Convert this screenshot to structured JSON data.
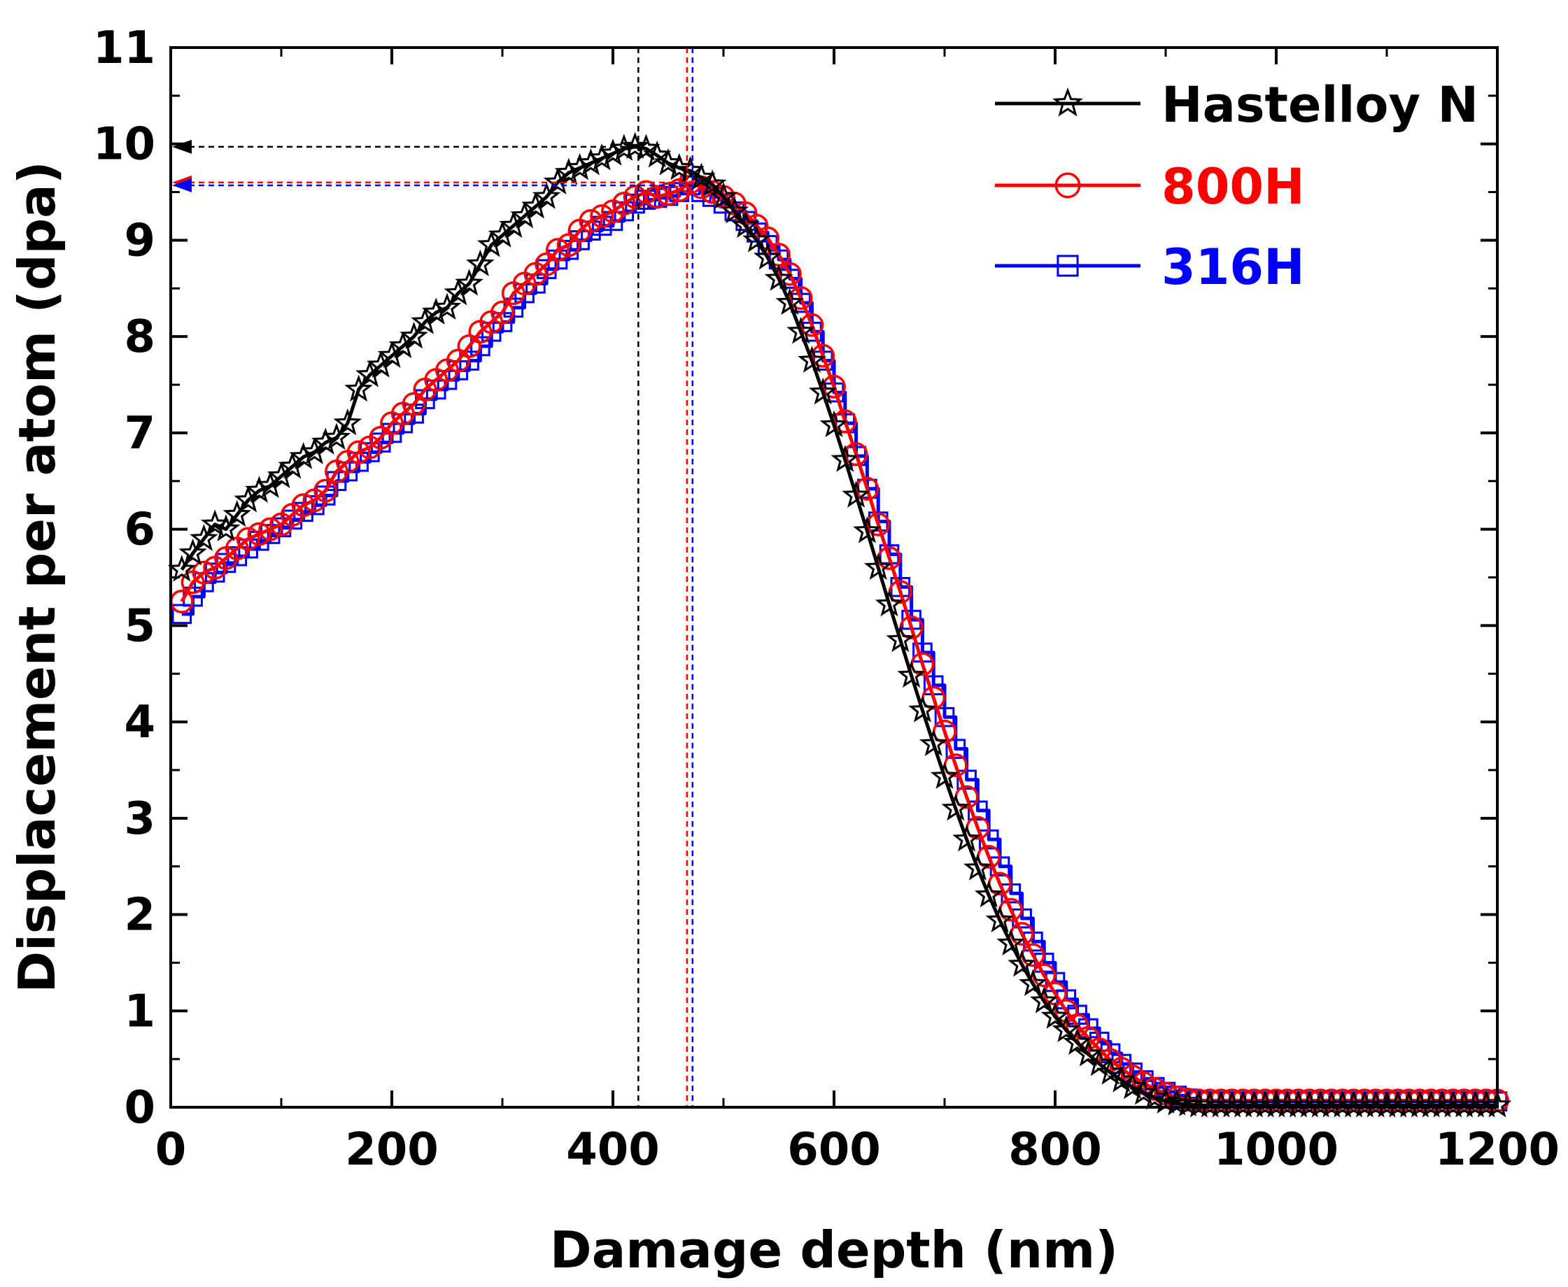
{
  "chart_data": {
    "type": "line",
    "xlabel": "Damage depth (nm)",
    "ylabel": "Displacement per atom (dpa)",
    "xlim": [
      0,
      1200
    ],
    "ylim": [
      0,
      11
    ],
    "xticks": [
      0,
      200,
      400,
      600,
      800,
      1000,
      1200
    ],
    "yticks": [
      0,
      1,
      2,
      3,
      4,
      5,
      6,
      7,
      8,
      9,
      10,
      11
    ],
    "grid": false,
    "legend_position": "top-right",
    "series": [
      {
        "name": "Hastelloy N",
        "color": "#000000",
        "marker": "star",
        "peak_x": 423,
        "peak_y": 9.97,
        "x": [
          10,
          20,
          30,
          40,
          50,
          60,
          70,
          80,
          90,
          100,
          110,
          120,
          130,
          140,
          150,
          160,
          170,
          180,
          190,
          200,
          210,
          220,
          230,
          240,
          250,
          260,
          270,
          280,
          290,
          300,
          310,
          320,
          330,
          340,
          350,
          360,
          370,
          380,
          390,
          400,
          410,
          420,
          430,
          440,
          450,
          460,
          470,
          480,
          490,
          500,
          510,
          520,
          530,
          540,
          550,
          560,
          570,
          580,
          590,
          600,
          610,
          620,
          630,
          640,
          650,
          660,
          670,
          680,
          690,
          700,
          710,
          720,
          730,
          740,
          750,
          760,
          770,
          780,
          790,
          800,
          810,
          820,
          830,
          840,
          850,
          860,
          870,
          880,
          890,
          900,
          910,
          920,
          930,
          940,
          950,
          960,
          970,
          980,
          990,
          1000,
          1010,
          1020,
          1030,
          1040,
          1050,
          1060,
          1070,
          1080,
          1090,
          1100,
          1110,
          1120,
          1130,
          1140,
          1150,
          1160,
          1170,
          1180,
          1190,
          1200
        ],
        "y": [
          5.58,
          5.75,
          5.9,
          6.05,
          6.0,
          6.15,
          6.3,
          6.4,
          6.45,
          6.55,
          6.65,
          6.75,
          6.8,
          6.9,
          6.95,
          7.1,
          7.45,
          7.6,
          7.7,
          7.8,
          7.9,
          8.0,
          8.15,
          8.25,
          8.3,
          8.45,
          8.55,
          8.75,
          8.95,
          9.05,
          9.15,
          9.25,
          9.35,
          9.45,
          9.6,
          9.7,
          9.75,
          9.8,
          9.85,
          9.9,
          9.95,
          9.97,
          9.95,
          9.88,
          9.8,
          9.75,
          9.72,
          9.65,
          9.58,
          9.45,
          9.3,
          9.15,
          9.0,
          8.82,
          8.6,
          8.35,
          8.05,
          7.75,
          7.42,
          7.08,
          6.72,
          6.35,
          5.98,
          5.6,
          5.22,
          4.85,
          4.48,
          4.12,
          3.77,
          3.43,
          3.1,
          2.78,
          2.48,
          2.2,
          1.94,
          1.7,
          1.48,
          1.28,
          1.1,
          0.94,
          0.8,
          0.67,
          0.55,
          0.45,
          0.36,
          0.28,
          0.21,
          0.15,
          0.1,
          0.06,
          0.04,
          0.03,
          0.02,
          0.02,
          0.02,
          0.02,
          0.02,
          0.02,
          0.02,
          0.02,
          0.02,
          0.02,
          0.02,
          0.02,
          0.02,
          0.02,
          0.02,
          0.02,
          0.02,
          0.02,
          0.02,
          0.02,
          0.02,
          0.02,
          0.02,
          0.02,
          0.02,
          0.02,
          0.02,
          0.02
        ]
      },
      {
        "name": "800H",
        "color": "#ff0000",
        "marker": "circle",
        "peak_x": 467,
        "peak_y": 9.6,
        "x": [
          10,
          20,
          30,
          40,
          50,
          60,
          70,
          80,
          90,
          100,
          110,
          120,
          130,
          140,
          150,
          160,
          170,
          180,
          190,
          200,
          210,
          220,
          230,
          240,
          250,
          260,
          270,
          280,
          290,
          300,
          310,
          320,
          330,
          340,
          350,
          360,
          370,
          380,
          390,
          400,
          410,
          420,
          430,
          440,
          450,
          460,
          470,
          480,
          490,
          500,
          510,
          520,
          530,
          540,
          550,
          560,
          570,
          580,
          590,
          600,
          610,
          620,
          630,
          640,
          650,
          660,
          670,
          680,
          690,
          700,
          710,
          720,
          730,
          740,
          750,
          760,
          770,
          780,
          790,
          800,
          810,
          820,
          830,
          840,
          850,
          860,
          870,
          880,
          890,
          900,
          910,
          920,
          930,
          940,
          950,
          960,
          970,
          980,
          990,
          1000,
          1010,
          1020,
          1030,
          1040,
          1050,
          1060,
          1070,
          1080,
          1090,
          1100,
          1110,
          1120,
          1130,
          1140,
          1150,
          1160,
          1170,
          1180,
          1190,
          1200
        ],
        "y": [
          5.25,
          5.45,
          5.55,
          5.6,
          5.7,
          5.8,
          5.9,
          5.95,
          6.0,
          6.05,
          6.15,
          6.25,
          6.3,
          6.4,
          6.6,
          6.7,
          6.8,
          6.85,
          6.95,
          7.1,
          7.2,
          7.3,
          7.45,
          7.55,
          7.65,
          7.75,
          7.9,
          8.05,
          8.15,
          8.25,
          8.45,
          8.55,
          8.65,
          8.75,
          8.9,
          8.95,
          9.1,
          9.2,
          9.25,
          9.3,
          9.38,
          9.45,
          9.5,
          9.45,
          9.48,
          9.52,
          9.6,
          9.55,
          9.5,
          9.45,
          9.38,
          9.28,
          9.15,
          9.02,
          8.85,
          8.65,
          8.4,
          8.12,
          7.8,
          7.48,
          7.12,
          6.78,
          6.42,
          6.05,
          5.7,
          5.35,
          4.98,
          4.6,
          4.25,
          3.9,
          3.55,
          3.22,
          2.9,
          2.6,
          2.32,
          2.05,
          1.8,
          1.58,
          1.37,
          1.18,
          1.0,
          0.85,
          0.72,
          0.6,
          0.49,
          0.4,
          0.32,
          0.25,
          0.19,
          0.14,
          0.1,
          0.08,
          0.07,
          0.07,
          0.07,
          0.07,
          0.07,
          0.07,
          0.07,
          0.07,
          0.07,
          0.07,
          0.07,
          0.07,
          0.07,
          0.07,
          0.07,
          0.07,
          0.07,
          0.07,
          0.07,
          0.07,
          0.07,
          0.07,
          0.07,
          0.07,
          0.07,
          0.07,
          0.07,
          0.07
        ]
      },
      {
        "name": "316H",
        "color": "#0000ff",
        "marker": "square",
        "peak_x": 472,
        "peak_y": 9.57,
        "x": [
          10,
          20,
          30,
          40,
          50,
          60,
          70,
          80,
          90,
          100,
          110,
          120,
          130,
          140,
          150,
          160,
          170,
          180,
          190,
          200,
          210,
          220,
          230,
          240,
          250,
          260,
          270,
          280,
          290,
          300,
          310,
          320,
          330,
          340,
          350,
          360,
          370,
          380,
          390,
          400,
          410,
          420,
          430,
          440,
          450,
          460,
          470,
          480,
          490,
          500,
          510,
          520,
          530,
          540,
          550,
          560,
          570,
          580,
          590,
          600,
          610,
          620,
          630,
          640,
          650,
          660,
          670,
          680,
          690,
          700,
          710,
          720,
          730,
          740,
          750,
          760,
          770,
          780,
          790,
          800,
          810,
          820,
          830,
          840,
          850,
          860,
          870,
          880,
          890,
          900,
          910,
          920,
          930,
          940,
          950,
          960,
          970,
          980,
          990,
          1000,
          1010,
          1020,
          1030,
          1040,
          1050,
          1060,
          1070,
          1080,
          1090,
          1100,
          1110,
          1120,
          1130,
          1140,
          1150,
          1160,
          1170,
          1180,
          1190,
          1200
        ],
        "y": [
          5.12,
          5.3,
          5.45,
          5.55,
          5.65,
          5.72,
          5.8,
          5.88,
          5.95,
          6.02,
          6.1,
          6.18,
          6.25,
          6.35,
          6.5,
          6.6,
          6.7,
          6.8,
          6.9,
          7.0,
          7.1,
          7.2,
          7.35,
          7.45,
          7.55,
          7.65,
          7.75,
          7.9,
          8.05,
          8.15,
          8.3,
          8.45,
          8.55,
          8.7,
          8.8,
          8.9,
          9.0,
          9.1,
          9.15,
          9.2,
          9.3,
          9.38,
          9.42,
          9.44,
          9.46,
          9.5,
          9.57,
          9.5,
          9.45,
          9.38,
          9.3,
          9.2,
          9.08,
          8.95,
          8.8,
          8.6,
          8.35,
          8.05,
          7.75,
          7.42,
          7.1,
          6.76,
          6.42,
          6.08,
          5.74,
          5.4,
          5.06,
          4.72,
          4.38,
          4.05,
          3.72,
          3.4,
          3.08,
          2.78,
          2.5,
          2.22,
          1.96,
          1.72,
          1.5,
          1.3,
          1.12,
          0.96,
          0.82,
          0.68,
          0.56,
          0.45,
          0.36,
          0.28,
          0.21,
          0.16,
          0.12,
          0.09,
          0.07,
          0.06,
          0.06,
          0.06,
          0.06,
          0.06,
          0.06,
          0.06,
          0.06,
          0.06,
          0.06,
          0.06,
          0.06,
          0.06,
          0.06,
          0.06,
          0.06,
          0.06,
          0.06,
          0.06,
          0.06,
          0.06,
          0.06,
          0.06,
          0.06,
          0.06,
          0.06,
          0.06
        ]
      }
    ]
  }
}
